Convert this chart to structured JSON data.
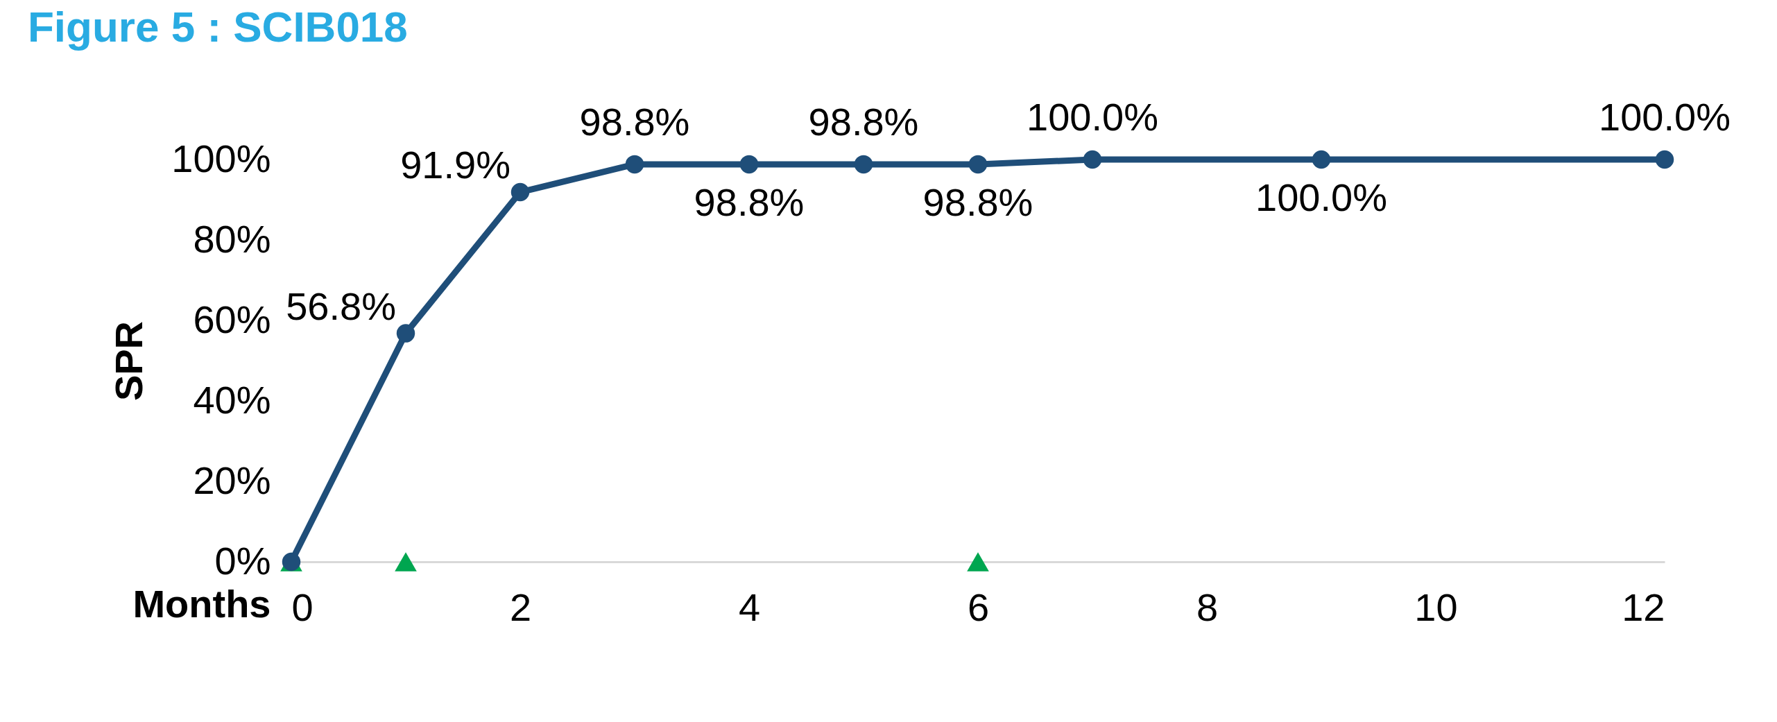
{
  "chart_data": {
    "type": "line",
    "title": "Figure 5 : SCIB018",
    "xlabel": "Months",
    "ylabel": "SPR",
    "xlim": [
      0,
      12
    ],
    "xticks": [
      0,
      2,
      4,
      6,
      8,
      10,
      12
    ],
    "ylim": [
      0,
      100
    ],
    "yticks": [
      {
        "value": 0,
        "label": "0%"
      },
      {
        "value": 20,
        "label": "20%"
      },
      {
        "value": 40,
        "label": "40%"
      },
      {
        "value": 60,
        "label": "60%"
      },
      {
        "value": 80,
        "label": "80%"
      },
      {
        "value": 100,
        "label": "100%"
      }
    ],
    "grid": false,
    "series": [
      {
        "type": "scatter",
        "color": "#00a650",
        "marker": "triangle",
        "x": [
          0,
          1,
          6
        ],
        "values": [
          0,
          0,
          0
        ]
      },
      {
        "color": "#1f4e79",
        "marker": "circle",
        "x": [
          0,
          1,
          2,
          3,
          4,
          5,
          6,
          7,
          9,
          12
        ],
        "values": [
          0,
          56.8,
          91.9,
          98.8,
          98.8,
          98.8,
          98.8,
          100,
          100,
          100
        ],
        "value_labels": [
          null,
          "56.8%",
          "91.9%",
          "98.8%",
          "98.8%",
          "98.8%",
          "98.8%",
          "100.0%",
          "100.0%",
          "100.0%"
        ]
      }
    ]
  }
}
